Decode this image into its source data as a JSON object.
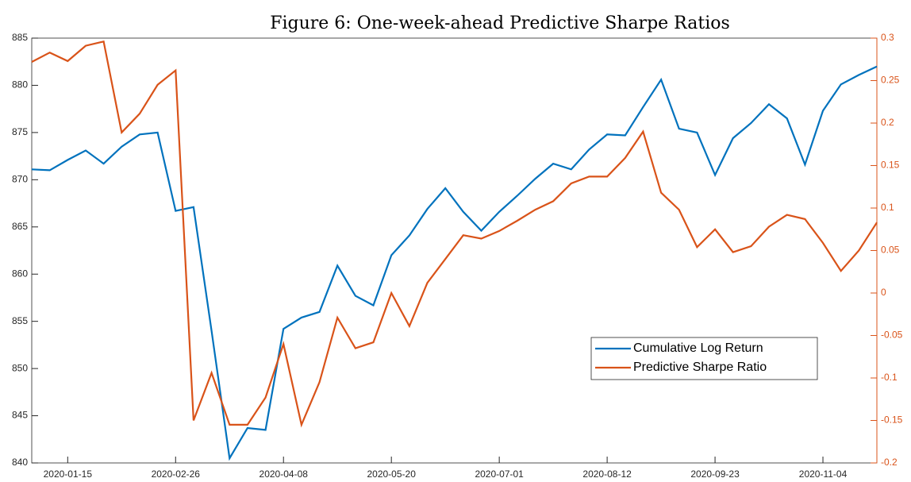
{
  "chart_data": {
    "type": "line",
    "title": "Figure 6: One-week-ahead Predictive Sharpe Ratios",
    "x": [
      "2020-01-01",
      "2020-01-08",
      "2020-01-15",
      "2020-01-22",
      "2020-01-29",
      "2020-02-05",
      "2020-02-12",
      "2020-02-19",
      "2020-02-26",
      "2020-03-04",
      "2020-03-11",
      "2020-03-18",
      "2020-03-25",
      "2020-04-01",
      "2020-04-08",
      "2020-04-15",
      "2020-04-22",
      "2020-04-29",
      "2020-05-06",
      "2020-05-13",
      "2020-05-20",
      "2020-05-27",
      "2020-06-03",
      "2020-06-10",
      "2020-06-17",
      "2020-06-24",
      "2020-07-01",
      "2020-07-08",
      "2020-07-15",
      "2020-07-22",
      "2020-07-29",
      "2020-08-05",
      "2020-08-12",
      "2020-08-19",
      "2020-08-26",
      "2020-09-02",
      "2020-09-09",
      "2020-09-16",
      "2020-09-23",
      "2020-09-30",
      "2020-10-07",
      "2020-10-14",
      "2020-10-21",
      "2020-10-28",
      "2020-11-04",
      "2020-11-11",
      "2020-11-18",
      "2020-11-25"
    ],
    "xlim": [
      "2020-01-01",
      "2020-11-25"
    ],
    "xticks": [
      "2020-01-15",
      "2020-02-26",
      "2020-04-08",
      "2020-05-20",
      "2020-07-01",
      "2020-08-12",
      "2020-09-23",
      "2020-11-04"
    ],
    "ylim": [
      840,
      885
    ],
    "yticks": [
      840,
      845,
      850,
      855,
      860,
      865,
      870,
      875,
      880,
      885
    ],
    "y2lim": [
      -0.2,
      0.3
    ],
    "y2ticks": [
      -0.2,
      -0.15,
      -0.1,
      -0.05,
      0,
      0.05,
      0.1,
      0.15,
      0.2,
      0.25,
      0.3
    ],
    "legend": "lower right",
    "series": [
      {
        "name": "Cumulative Log Return",
        "color": "#0072bd",
        "values": [
          871.1,
          871.0,
          872.1,
          873.1,
          871.7,
          873.5,
          874.8,
          875.0,
          866.7,
          867.1,
          854.0,
          840.5,
          843.7,
          843.5,
          854.2,
          855.4,
          856.0,
          860.9,
          857.7,
          856.7,
          862.0,
          864.1,
          866.9,
          869.1,
          866.6,
          864.6,
          866.6,
          868.3,
          870.1,
          871.7,
          871.1,
          873.2,
          874.8,
          874.7,
          877.7,
          880.6,
          875.4,
          875.0,
          870.5,
          874.4,
          876.0,
          878.0,
          876.5,
          871.6,
          877.3,
          880.1,
          881.1,
          882.0
        ]
      },
      {
        "name": "Predictive Sharpe Ratio",
        "color": "#d95319",
        "axis": "y2",
        "values": [
          0.272,
          0.283,
          0.273,
          0.291,
          0.296,
          0.189,
          0.211,
          0.245,
          0.262,
          -0.15,
          -0.094,
          -0.155,
          -0.155,
          -0.123,
          -0.06,
          -0.155,
          -0.105,
          -0.029,
          -0.065,
          -0.058,
          0.0,
          -0.039,
          0.012,
          0.04,
          0.068,
          0.064,
          0.073,
          0.085,
          0.098,
          0.108,
          0.129,
          0.137,
          0.137,
          0.159,
          0.19,
          0.118,
          0.098,
          0.054,
          0.075,
          0.048,
          0.055,
          0.078,
          0.092,
          0.087,
          0.059,
          0.026,
          0.05,
          0.083
        ]
      }
    ]
  }
}
